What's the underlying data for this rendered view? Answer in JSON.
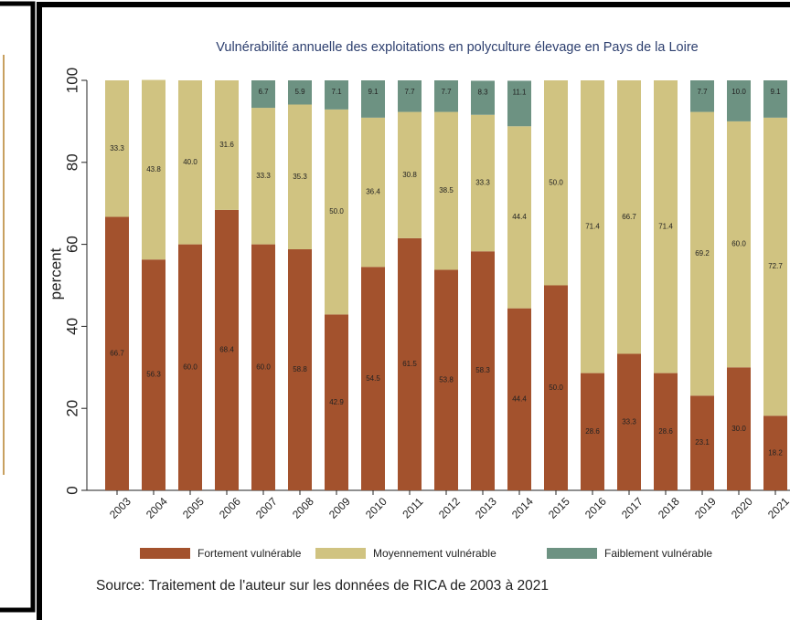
{
  "chart_data": {
    "type": "stacked_bar",
    "title": "Vulnérabilité annuelle des exploitations en polyculture élevage en Pays de la Loire",
    "y_label": "percent",
    "source": "Source: Traitement de l'auteur sur les données de RICA de 2003 à 2021",
    "categories": [
      "2003",
      "2004",
      "2005",
      "2006",
      "2007",
      "2008",
      "2009",
      "2010",
      "2011",
      "2012",
      "2013",
      "2014",
      "2015",
      "2016",
      "2017",
      "2018",
      "2019",
      "2020",
      "2021"
    ],
    "ylim": [
      0,
      100
    ],
    "yticks": [
      0,
      20,
      40,
      60,
      80,
      100
    ],
    "grid": false,
    "series": [
      {
        "name": "Fortement vulnérable",
        "color": "#a3522d",
        "values": [
          66.7,
          56.3,
          60,
          68.4,
          60,
          58.8,
          42.9,
          54.5,
          61.5,
          53.8,
          58.3,
          44.4,
          50,
          28.6,
          33.3,
          28.6,
          23.1,
          30,
          18.2
        ],
        "value_labels": [
          "66.7",
          "56.3",
          "60.0",
          "68.4",
          "60.0",
          "58.8",
          "42.9",
          "54.5",
          "61.5",
          "53.8",
          "58.3",
          "44.4",
          "50.0",
          "28.6",
          "33.3",
          "28.6",
          "23.1",
          "30.0",
          "18.2"
        ]
      },
      {
        "name": "Moyennement vulnérable",
        "color": "#d0c381",
        "values": [
          33.3,
          43.8,
          40,
          31.6,
          33.3,
          35.3,
          50,
          36.4,
          30.8,
          38.5,
          33.3,
          44.4,
          50,
          71.4,
          66.7,
          71.4,
          69.2,
          60,
          72.7
        ],
        "value_labels": [
          "33.3",
          "43.8",
          "40.0",
          "31.6",
          "33.3",
          "35.3",
          "50.0",
          "36.4",
          "30.8",
          "38.5",
          "33.3",
          "44.4",
          "50.0",
          "71.4",
          "66.7",
          "71.4",
          "69.2",
          "60.0",
          "72.7"
        ]
      },
      {
        "name": "Faiblement vulnérable",
        "color": "#6d9282",
        "values": [
          null,
          null,
          null,
          null,
          6.7,
          5.9,
          7.1,
          9.1,
          7.7,
          7.7,
          8.3,
          11.1,
          null,
          null,
          null,
          null,
          7.7,
          10,
          9.1
        ],
        "value_labels": [
          null,
          null,
          null,
          null,
          "6.7",
          "5.9",
          "7.1",
          "9.1",
          "7.7",
          "7.7",
          "8.3",
          "11.1",
          null,
          null,
          null,
          null,
          "7.7",
          "10.0",
          "9.1"
        ]
      }
    ]
  }
}
